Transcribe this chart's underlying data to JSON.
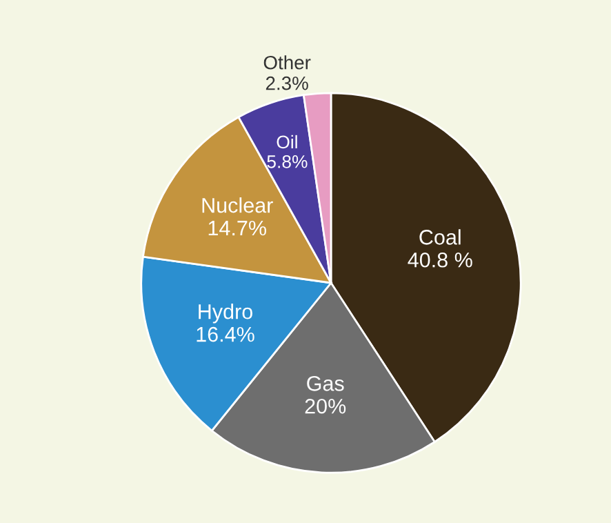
{
  "chart_data": {
    "type": "pie",
    "categories": [
      "Coal",
      "Gas",
      "Hydro",
      "Nuclear",
      "Oil",
      "Other"
    ],
    "values": [
      40.8,
      20,
      16.4,
      14.7,
      5.8,
      2.3
    ],
    "value_labels": [
      "40.8 %",
      "20%",
      "16.4%",
      "14.7%",
      "5.8%",
      "2.3%"
    ],
    "colors": [
      "#3a2a14",
      "#6e6e6e",
      "#2b8fd0",
      "#c4943e",
      "#4a3c9e",
      "#e79cc2"
    ]
  }
}
